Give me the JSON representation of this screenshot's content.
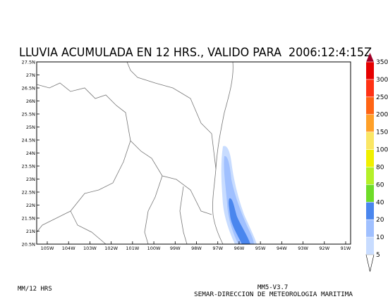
{
  "map": {
    "title": "LLUVIA ACUMULADA EN 12 HRS., VALIDO PARA  2006:12:4:15Z",
    "lon_labels": [
      "105W",
      "104W",
      "103W",
      "102W",
      "101W",
      "100W",
      "99W",
      "98W",
      "97W",
      "96W",
      "95W",
      "94W",
      "93W",
      "92W",
      "91W"
    ],
    "lat_labels": [
      "27.5N",
      "27N",
      "26.5N",
      "26N",
      "25.5N",
      "25N",
      "24.5N",
      "24N",
      "23.5N",
      "23N",
      "22.5N",
      "22N",
      "21.5N",
      "21N",
      "20.5N"
    ],
    "colorbar": {
      "levels": [
        5,
        10,
        20,
        40,
        60,
        80,
        100,
        150,
        200,
        250,
        300,
        350
      ],
      "colors": [
        "#c8dcff",
        "#a0c0ff",
        "#4a86ee",
        "#6edc28",
        "#b4f028",
        "#f0f000",
        "#fae664",
        "#ffa028",
        "#ff6414",
        "#ff3214",
        "#e60000",
        "#a00028"
      ]
    },
    "footer_left": "MM/12 HRS",
    "footer_model": "MM5-V3.7",
    "footer_org": "SEMAR-DIRECCION DE METEOROLOGIA MARITIMA"
  }
}
